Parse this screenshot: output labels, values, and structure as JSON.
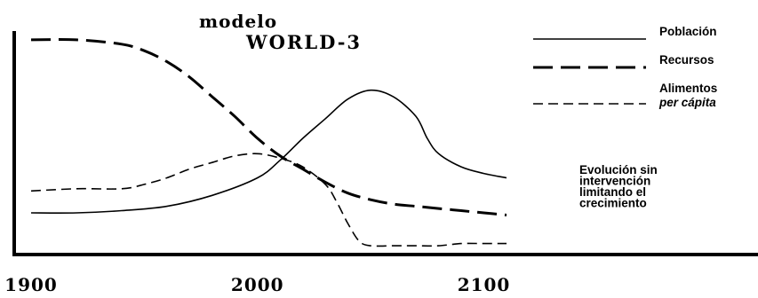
{
  "chart_data": {
    "type": "line",
    "title": "modelo",
    "subtitle": "WORLD-3",
    "xlabel": "",
    "ylabel": "",
    "xlim": [
      1900,
      2110
    ],
    "ylim": [
      0,
      100
    ],
    "x_ticks": [
      1900,
      2000,
      2100
    ],
    "x_tick_labels": [
      "1900",
      "2000",
      "2100"
    ],
    "grid": false,
    "legend_position": "top-right",
    "series": [
      {
        "name": "Población",
        "style": "solid",
        "color": "#000000",
        "x": [
          1900,
          1920,
          1940,
          1960,
          1980,
          2000,
          2010,
          2020,
          2030,
          2040,
          2050,
          2060,
          2070,
          2075,
          2080,
          2090,
          2100,
          2110
        ],
        "y": [
          17,
          17,
          18,
          20,
          25,
          33,
          41,
          51,
          60,
          69,
          73,
          70,
          61,
          51,
          44,
          38,
          35,
          33
        ]
      },
      {
        "name": "Recursos",
        "style": "long-dash",
        "color": "#000000",
        "x": [
          1900,
          1920,
          1940,
          1950,
          1960,
          1970,
          1980,
          1990,
          2000,
          2010,
          2020,
          2030,
          2040,
          2050,
          2060,
          2070,
          2080,
          2090,
          2100,
          2110
        ],
        "y": [
          96,
          96,
          94,
          91,
          86,
          79,
          70,
          61,
          51,
          43,
          37,
          31,
          26,
          23,
          21,
          20,
          19,
          18,
          17,
          16
        ]
      },
      {
        "name": "Alimentos",
        "name_suffix": "per cápita",
        "style": "short-dash",
        "color": "#000000",
        "x": [
          1900,
          1920,
          1940,
          1950,
          1960,
          1970,
          1980,
          1990,
          2000,
          2010,
          2020,
          2030,
          2035,
          2040,
          2045,
          2050,
          2060,
          2070,
          2080,
          2090,
          2100,
          2110
        ],
        "y": [
          27,
          28,
          28,
          30,
          33,
          37,
          40,
          43,
          44,
          42,
          38,
          30,
          22,
          12,
          4,
          2,
          2,
          2,
          2,
          3,
          3,
          3
        ]
      }
    ],
    "annotation": [
      "Evolución sin",
      "intervención",
      "limitando el",
      "crecimiento"
    ]
  }
}
